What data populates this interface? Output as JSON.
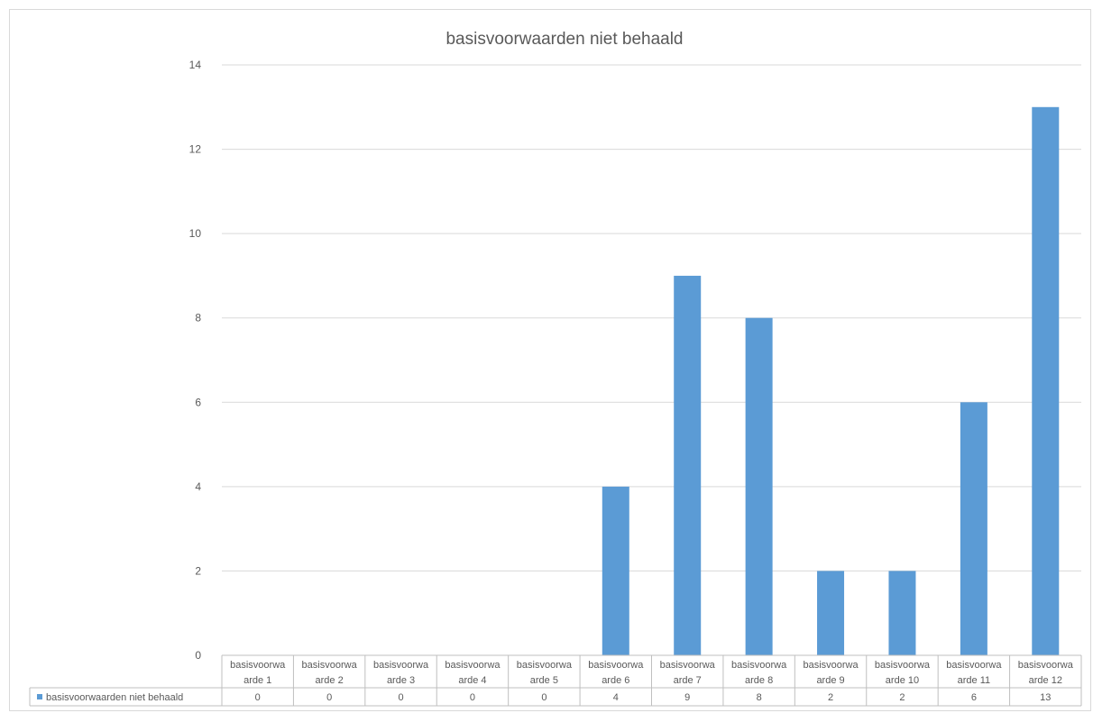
{
  "chart_data": {
    "type": "bar",
    "title": "basisvoorwaarden niet behaald",
    "categories": [
      [
        "basisvoorwa",
        "arde 1"
      ],
      [
        "basisvoorwa",
        "arde 2"
      ],
      [
        "basisvoorwa",
        "arde 3"
      ],
      [
        "basisvoorwa",
        "arde 4"
      ],
      [
        "basisvoorwa",
        "arde 5"
      ],
      [
        "basisvoorwa",
        "arde 6"
      ],
      [
        "basisvoorwa",
        "arde 7"
      ],
      [
        "basisvoorwa",
        "arde 8"
      ],
      [
        "basisvoorwa",
        "arde 9"
      ],
      [
        "basisvoorwa",
        "arde 10"
      ],
      [
        "basisvoorwa",
        "arde 11"
      ],
      [
        "basisvoorwa",
        "arde 12"
      ]
    ],
    "series": [
      {
        "name": "basisvoorwaarden niet behaald",
        "values": [
          0,
          0,
          0,
          0,
          0,
          4,
          9,
          8,
          2,
          2,
          6,
          13
        ],
        "color": "#5b9bd5"
      }
    ],
    "yticks": [
      0,
      2,
      4,
      6,
      8,
      10,
      12,
      14
    ],
    "ylim": [
      0,
      14
    ],
    "grid": true,
    "data_table": true,
    "legend": "data-table"
  }
}
